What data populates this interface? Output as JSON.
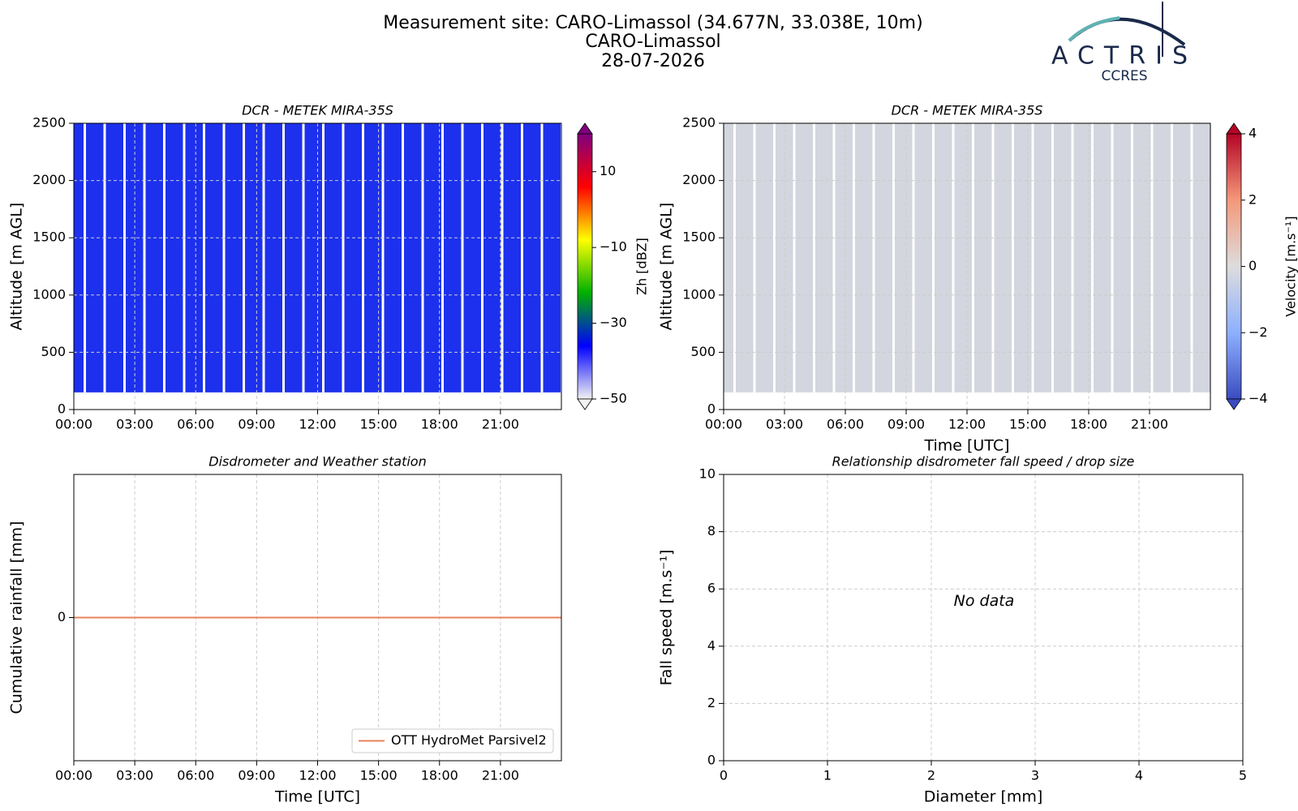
{
  "header": {
    "title": [
      "Measurement site: CARO-Limassol (34.677N, 33.038E, 10m)",
      "CARO-Limassol",
      "28-07-2026"
    ],
    "logo": {
      "name": "ACTRIS",
      "subtitle": "CCRES"
    }
  },
  "chart_data": [
    {
      "type": "heatmap",
      "title": "DCR - METEK MIRA-35S",
      "ylabel": "Altitude [m AGL]",
      "xlim": [
        0,
        24
      ],
      "xticks": [
        {
          "value": 0,
          "label": "00:00"
        },
        {
          "value": 3,
          "label": "03:00"
        },
        {
          "value": 6,
          "label": "06:00"
        },
        {
          "value": 9,
          "label": "09:00"
        },
        {
          "value": 12,
          "label": "12:00"
        },
        {
          "value": 15,
          "label": "15:00"
        },
        {
          "value": 18,
          "label": "18:00"
        },
        {
          "value": 21,
          "label": "21:00"
        }
      ],
      "ylim": [
        0,
        2500
      ],
      "yticks": [
        0,
        500,
        1000,
        1500,
        2000,
        2500
      ],
      "grid": true,
      "fill": "#1c30ee",
      "colorbar_label": "Zh [dBZ]",
      "clim": [
        -50,
        20
      ],
      "cticks": [
        {
          "value": -50,
          "label": "−50"
        },
        {
          "value": -30,
          "label": "−30"
        },
        {
          "value": -10,
          "label": "−10"
        },
        10
      ],
      "colormap": [
        "#f2f2f2",
        "#0000ff",
        "#00b000",
        "#ffff00",
        "#ff0000",
        "#800080"
      ]
    },
    {
      "type": "heatmap",
      "title": "DCR - METEK MIRA-35S",
      "ylabel": "Altitude [m AGL]",
      "xlabel": "Time [UTC]",
      "xlim": [
        0,
        24
      ],
      "xticks": [
        {
          "value": 0,
          "label": "00:00"
        },
        {
          "value": 3,
          "label": "03:00"
        },
        {
          "value": 6,
          "label": "06:00"
        },
        {
          "value": 9,
          "label": "09:00"
        },
        {
          "value": 12,
          "label": "12:00"
        },
        {
          "value": 15,
          "label": "15:00"
        },
        {
          "value": 18,
          "label": "18:00"
        },
        {
          "value": 21,
          "label": "21:00"
        }
      ],
      "ylim": [
        0,
        2500
      ],
      "yticks": [
        0,
        500,
        1000,
        1500,
        2000,
        2500
      ],
      "grid": true,
      "fill": "#d3d6de",
      "colorbar_label": "Velocity [m.s⁻¹]",
      "clim": [
        -4,
        4
      ],
      "cticks": [
        {
          "value": -4,
          "label": "−4"
        },
        {
          "value": -2,
          "label": "−2"
        },
        0,
        2,
        4
      ],
      "colormap": [
        "#3b4cc0",
        "#8db0fe",
        "#dddddd",
        "#f4987a",
        "#b40426"
      ]
    },
    {
      "type": "line",
      "title": "Disdrometer and Weather station",
      "ylabel": "Cumulative rainfall [mm]",
      "xlabel": "Time [UTC]",
      "xlim": [
        0,
        24
      ],
      "xticks": [
        {
          "value": 0,
          "label": "00:00"
        },
        {
          "value": 3,
          "label": "03:00"
        },
        {
          "value": 6,
          "label": "06:00"
        },
        {
          "value": 9,
          "label": "09:00"
        },
        {
          "value": 12,
          "label": "12:00"
        },
        {
          "value": 15,
          "label": "15:00"
        },
        {
          "value": 18,
          "label": "18:00"
        },
        {
          "value": 21,
          "label": "21:00"
        }
      ],
      "ylim": [
        -0.055,
        0.055
      ],
      "yticks": [
        0
      ],
      "grid": true,
      "legend": "lower right",
      "x": [
        0,
        24
      ],
      "series": [
        {
          "name": "OTT HydroMet Parsivel2",
          "color": "#e8825a",
          "values": [
            0,
            0
          ]
        }
      ]
    },
    {
      "type": "scatter",
      "title": "Relationship disdrometer fall speed / drop size",
      "ylabel": "Fall speed [m.s⁻¹]",
      "xlabel": "Diameter [mm]",
      "xlim": [
        0,
        5
      ],
      "xticks": [
        0,
        1,
        2,
        3,
        4,
        5
      ],
      "ylim": [
        0,
        10
      ],
      "yticks": [
        0,
        2,
        4,
        6,
        8,
        10
      ],
      "grid": true,
      "annotation": "No data"
    }
  ]
}
